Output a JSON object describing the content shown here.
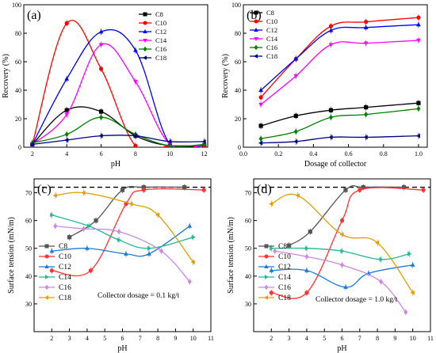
{
  "chart_data": [
    {
      "id": "a",
      "type": "line",
      "panel_label": "(a)",
      "xlabel": "pH",
      "ylabel": "Recovery (%)",
      "xlim": [
        1.5,
        12.2
      ],
      "ylim": [
        0,
        100
      ],
      "xticks": [
        2,
        4,
        6,
        8,
        10,
        12
      ],
      "yticks": [
        0,
        20,
        40,
        60,
        80,
        100
      ],
      "xtick_labels": [
        "2",
        "4",
        "6",
        "8",
        "10",
        "12"
      ],
      "ytick_labels": [
        "0",
        "20",
        "40",
        "60",
        "80",
        "100"
      ],
      "legend_position": "top-right",
      "series": [
        {
          "name": "C8",
          "color": "#000000",
          "marker": "square",
          "x": [
            2,
            4,
            6,
            8,
            10,
            12
          ],
          "y": [
            2,
            26,
            25,
            8,
            1,
            1
          ]
        },
        {
          "name": "C10",
          "color": "#ff0000",
          "marker": "circle",
          "x": [
            2,
            4,
            6,
            8,
            10,
            12
          ],
          "y": [
            2,
            87,
            55,
            1,
            1,
            1
          ]
        },
        {
          "name": "C12",
          "color": "#0000ff",
          "marker": "triangle-up",
          "x": [
            2,
            4,
            6,
            8,
            10,
            12
          ],
          "y": [
            2,
            48,
            81,
            68,
            2,
            2
          ]
        },
        {
          "name": "C14",
          "color": "#ff00ff",
          "marker": "triangle-down",
          "x": [
            2,
            4,
            6,
            8,
            10,
            12
          ],
          "y": [
            2,
            23,
            72,
            46,
            2,
            2
          ]
        },
        {
          "name": "C16",
          "color": "#008000",
          "marker": "diamond",
          "x": [
            2,
            4,
            6,
            8,
            10,
            12
          ],
          "y": [
            3,
            9,
            21,
            9,
            1,
            2
          ]
        },
        {
          "name": "C18",
          "color": "#000080",
          "marker": "triangle-left",
          "x": [
            2,
            4,
            6,
            8,
            10,
            12
          ],
          "y": [
            2,
            5,
            8,
            8,
            4,
            4
          ]
        }
      ]
    },
    {
      "id": "b",
      "type": "line",
      "panel_label": "(b)",
      "xlabel": "Dosage of collector",
      "ylabel": "Recovery (%)",
      "xlim": [
        0,
        1.05
      ],
      "ylim": [
        0,
        100
      ],
      "xticks": [
        0,
        0.2,
        0.4,
        0.6,
        0.8,
        1.0
      ],
      "yticks": [
        0,
        20,
        40,
        60,
        80,
        100
      ],
      "xtick_labels": [
        "0.0",
        "0.2",
        "0.4",
        "0.6",
        "0.8",
        "1.0"
      ],
      "ytick_labels": [
        "0",
        "20",
        "40",
        "60",
        "80",
        "100"
      ],
      "legend_position": "top-left",
      "series": [
        {
          "name": "C8",
          "color": "#000000",
          "marker": "square",
          "x": [
            0.1,
            0.3,
            0.5,
            0.7,
            1.0
          ],
          "y": [
            15,
            22,
            26,
            28,
            31
          ]
        },
        {
          "name": "C10",
          "color": "#ff0000",
          "marker": "circle",
          "x": [
            0.1,
            0.3,
            0.5,
            0.7,
            1.0
          ],
          "y": [
            35,
            62,
            85,
            88,
            91
          ]
        },
        {
          "name": "C12",
          "color": "#0000ff",
          "marker": "triangle-up",
          "x": [
            0.1,
            0.3,
            0.5,
            0.7,
            1.0
          ],
          "y": [
            40,
            62,
            82,
            84,
            86
          ]
        },
        {
          "name": "C14",
          "color": "#ff00ff",
          "marker": "triangle-down",
          "x": [
            0.1,
            0.3,
            0.5,
            0.7,
            1.0
          ],
          "y": [
            30,
            50,
            72,
            73,
            75
          ]
        },
        {
          "name": "C16",
          "color": "#008000",
          "marker": "diamond",
          "x": [
            0.1,
            0.3,
            0.5,
            0.7,
            1.0
          ],
          "y": [
            6,
            11,
            21,
            23,
            27
          ]
        },
        {
          "name": "C18",
          "color": "#000080",
          "marker": "triangle-left",
          "x": [
            0.1,
            0.3,
            0.5,
            0.7,
            1.0
          ],
          "y": [
            3,
            4,
            7,
            7,
            8
          ]
        }
      ]
    },
    {
      "id": "c",
      "type": "line",
      "panel_label": "(c)",
      "xlabel": "pH",
      "ylabel": "Surface tension (mN/m)",
      "xlim": [
        1,
        11
      ],
      "ylim": [
        20,
        75
      ],
      "xticks": [
        1,
        2,
        3,
        4,
        5,
        6,
        7,
        8,
        9,
        10,
        11
      ],
      "yticks": [
        30,
        40,
        50,
        60,
        70
      ],
      "xtick_labels": [
        "",
        "2",
        "3",
        "4",
        "5",
        "6",
        "7",
        "8",
        "9",
        "10",
        "11"
      ],
      "ytick_labels": [
        "30",
        "40",
        "50",
        "60",
        "70"
      ],
      "reference_line_y": 72,
      "annotation": "Collector dosage = 0.1 kg/t",
      "legend_position": "bottom-left",
      "series": [
        {
          "name": "C8",
          "color": "#555555",
          "marker": "square",
          "x": [
            3,
            4.5,
            6,
            7.2,
            9.5
          ],
          "y": [
            54,
            60,
            71,
            72,
            72
          ]
        },
        {
          "name": "C10",
          "color": "#ff3333",
          "marker": "circle",
          "x": [
            2,
            4.2,
            6.2,
            7.2,
            10.6
          ],
          "y": [
            42,
            42,
            66,
            71,
            71
          ]
        },
        {
          "name": "C12",
          "color": "#1e7ad6",
          "marker": "triangle-up",
          "x": [
            2,
            4,
            6.2,
            7.5,
            9.8
          ],
          "y": [
            49,
            50,
            48,
            48,
            58
          ]
        },
        {
          "name": "C14",
          "color": "#22b890",
          "marker": "triangle-right",
          "x": [
            2,
            4.1,
            5.8,
            7.5,
            10
          ],
          "y": [
            62,
            58,
            53,
            50,
            54
          ]
        },
        {
          "name": "C16",
          "color": "#cc88e0",
          "marker": "diamond",
          "x": [
            2.2,
            3.8,
            5.8,
            8.2,
            9.8
          ],
          "y": [
            58,
            57,
            56,
            49,
            38
          ]
        },
        {
          "name": "C18",
          "color": "#e0a000",
          "marker": "triangle-left",
          "x": [
            2.2,
            3.8,
            6.5,
            8,
            10
          ],
          "y": [
            69,
            70,
            66,
            62,
            45
          ]
        }
      ]
    },
    {
      "id": "d",
      "type": "line",
      "panel_label": "(d)",
      "xlabel": "pH",
      "ylabel": "Surface tension (mN/m)",
      "xlim": [
        1,
        11
      ],
      "ylim": [
        20,
        75
      ],
      "xticks": [
        1,
        2,
        3,
        4,
        5,
        6,
        7,
        8,
        9,
        10,
        11
      ],
      "yticks": [
        30,
        40,
        50,
        60,
        70
      ],
      "xtick_labels": [
        "",
        "2",
        "3",
        "4",
        "5",
        "6",
        "7",
        "8",
        "9",
        "10",
        "11"
      ],
      "ytick_labels": [
        "30",
        "40",
        "50",
        "60",
        "70"
      ],
      "reference_line_y": 72,
      "annotation": "Collector dosage = 1.0 kg/t",
      "legend_position": "bottom-left",
      "series": [
        {
          "name": "C8",
          "color": "#555555",
          "marker": "square",
          "x": [
            3,
            4.2,
            6.2,
            7.2,
            9.5
          ],
          "y": [
            51,
            56,
            71,
            72,
            72
          ]
        },
        {
          "name": "C10",
          "color": "#ff3333",
          "marker": "circle",
          "x": [
            2,
            4,
            6,
            7,
            10.6
          ],
          "y": [
            34,
            34,
            60,
            71,
            71
          ]
        },
        {
          "name": "C12",
          "color": "#1e7ad6",
          "marker": "triangle-up",
          "x": [
            2,
            4,
            6.2,
            7.5,
            10
          ],
          "y": [
            42,
            42,
            36,
            41,
            44
          ]
        },
        {
          "name": "C14",
          "color": "#22b890",
          "marker": "triangle-right",
          "x": [
            2,
            4,
            6,
            8.2,
            9.8
          ],
          "y": [
            50,
            50,
            49,
            46,
            48
          ]
        },
        {
          "name": "C16",
          "color": "#cc88e0",
          "marker": "diamond",
          "x": [
            2.2,
            4,
            6,
            8.2,
            9.6
          ],
          "y": [
            49,
            47,
            44,
            38,
            27
          ]
        },
        {
          "name": "C18",
          "color": "#e0a000",
          "marker": "triangle-left",
          "x": [
            2,
            3.5,
            6,
            8,
            10
          ],
          "y": [
            66,
            69,
            55,
            52,
            34
          ]
        }
      ]
    }
  ]
}
